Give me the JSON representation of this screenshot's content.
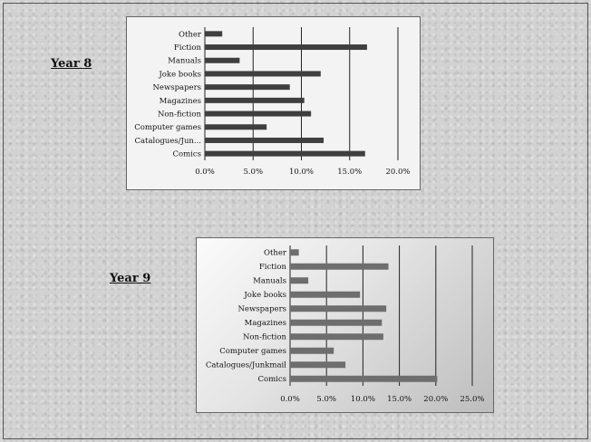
{
  "labels": {
    "year8": "Year  8",
    "year9": "Year 9"
  },
  "chart_data": [
    {
      "type": "bar",
      "orientation": "horizontal",
      "categories": [
        "Other",
        "Fiction",
        "Manuals",
        "Joke books",
        "Newspapers",
        "Magazines",
        "Non-fiction",
        "Computer games",
        "Catalogues/Jun...",
        "Comics"
      ],
      "values": [
        1.8,
        16.8,
        3.6,
        12.0,
        8.8,
        10.3,
        11.0,
        6.4,
        12.3,
        16.6
      ],
      "unit": "%",
      "xlim": [
        0,
        20
      ],
      "xticks": [
        "0.0%",
        "5.0%",
        "10.0%",
        "15.0%",
        "20.0%"
      ],
      "grid": "vertical",
      "bar_color": "#3f3f3f"
    },
    {
      "type": "bar",
      "orientation": "horizontal",
      "categories": [
        "Other",
        "Fiction",
        "Manuals",
        "Joke books",
        "Newspapers",
        "Magazines",
        "Non-fiction",
        "Computer games",
        "Catalogues/Junkmail",
        "Comics"
      ],
      "values": [
        1.2,
        13.5,
        2.5,
        9.6,
        13.2,
        12.6,
        12.8,
        6.0,
        7.6,
        20.2
      ],
      "unit": "%",
      "xlim": [
        0,
        25
      ],
      "xticks": [
        "0.0%",
        "5.0%",
        "10.0%",
        "15.0%",
        "20.0%",
        "25.0%"
      ],
      "grid": "vertical",
      "bar_color": "#6e6e6e"
    }
  ]
}
